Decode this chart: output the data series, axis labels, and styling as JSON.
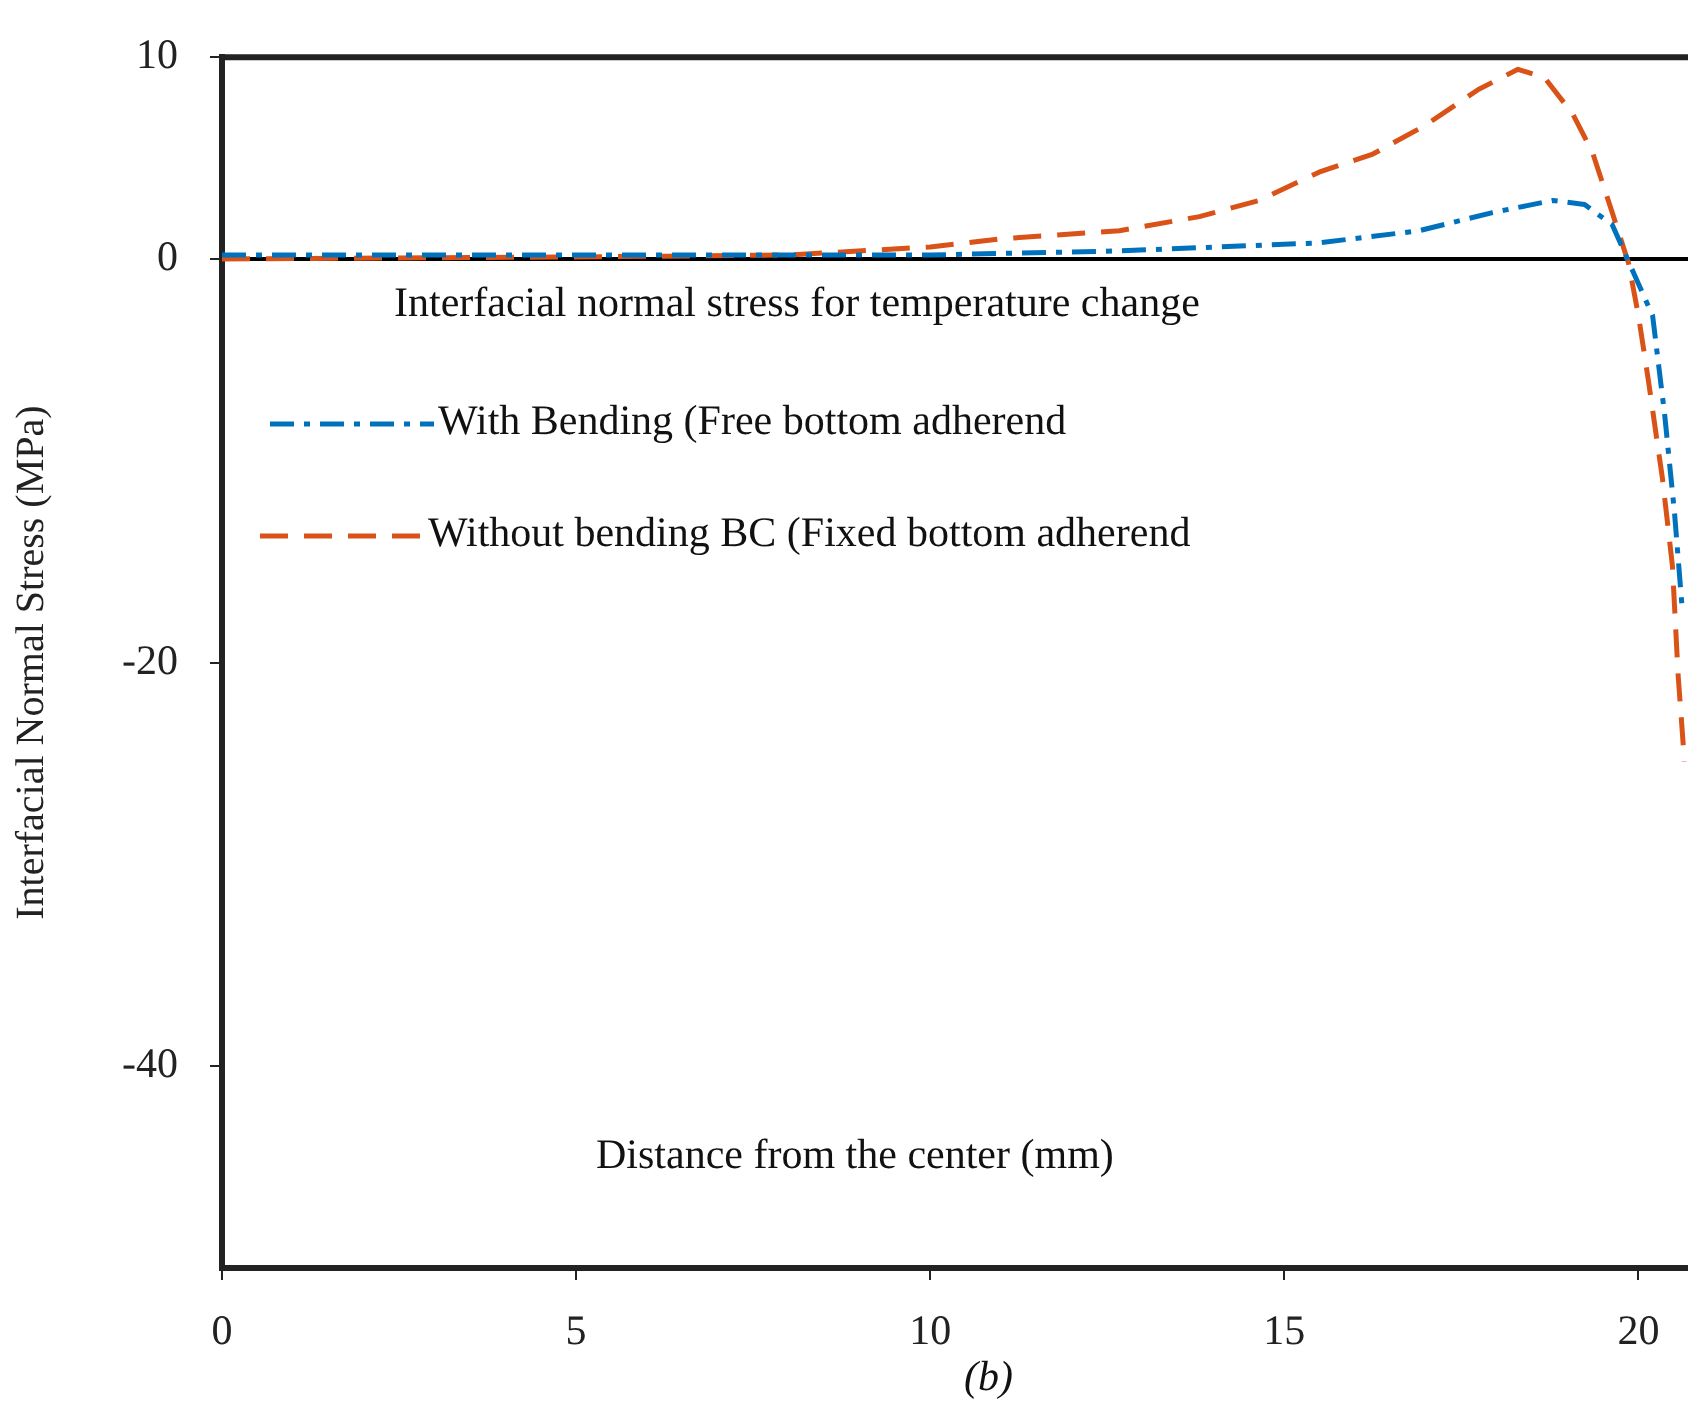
{
  "chart_data": {
    "type": "line",
    "xlabel": "Distance from the center (mm)",
    "ylabel": "Interfacial Normal Stress (MPa)",
    "legend_title": "Interfacial normal stress for temperature change",
    "xlim": [
      0,
      20.7
    ],
    "ylim": [
      -50,
      10
    ],
    "xticks": [
      0,
      5,
      10,
      15,
      20
    ],
    "yticks": [
      10,
      0,
      -20,
      -40
    ],
    "legend": "top left",
    "marker": "none",
    "ref_lines": [
      {
        "axis": "y",
        "value": 0,
        "color": "#000000"
      }
    ],
    "annotations": [
      "(b)"
    ],
    "series": [
      {
        "name": "With Bending (Free bottom adherend",
        "color": "#0072bd",
        "line_style": "dashdot",
        "x": [
          0,
          5,
          10,
          12.67,
          15.49,
          16.9,
          17.94,
          18.79,
          19.24,
          19.63,
          19.92,
          20.2,
          20.37,
          20.51,
          20.62
        ],
        "values": [
          0.2,
          0.2,
          0.2,
          0.4,
          0.8,
          1.4,
          2.3,
          2.9,
          2.7,
          1.7,
          -0.6,
          -2.8,
          -7.7,
          -12.6,
          -17.4
        ]
      },
      {
        "name": "Without bending BC (Fixed bottom adherend",
        "color": "#d95319",
        "line_style": "dashed",
        "x": [
          0,
          5,
          8,
          10,
          11,
          12.67,
          13.8,
          14.64,
          15.49,
          16.25,
          16.98,
          17.74,
          18.3,
          18.67,
          19.07,
          19.35,
          19.63,
          19.86,
          20.0,
          20.14,
          20.34,
          20.48,
          20.56,
          20.65
        ],
        "values": [
          0,
          0.1,
          0.2,
          0.6,
          1.0,
          1.4,
          2.1,
          2.9,
          4.3,
          5.2,
          6.6,
          8.4,
          9.4,
          9.0,
          7.2,
          5.3,
          2.3,
          -0.2,
          -2.8,
          -6.0,
          -10.9,
          -15.2,
          -20.6,
          -24.9
        ]
      }
    ]
  }
}
